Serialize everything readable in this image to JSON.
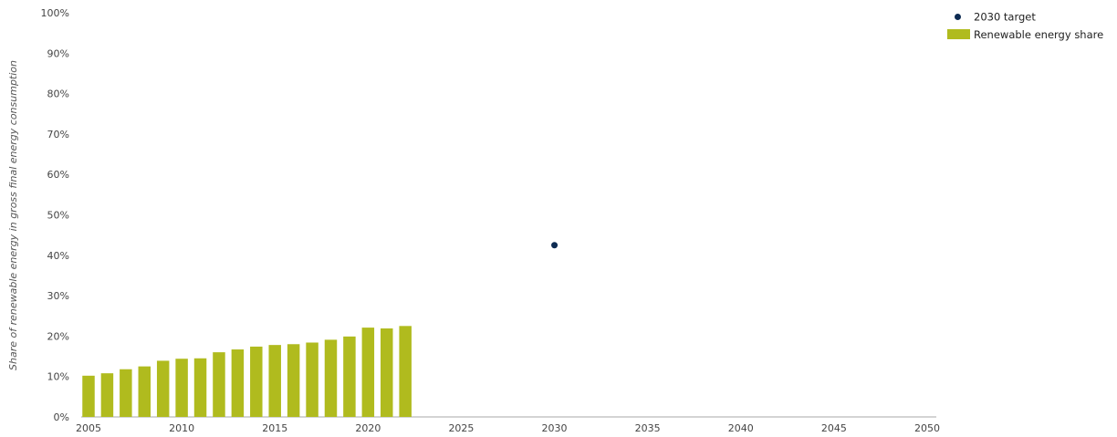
{
  "chart_data": {
    "type": "bar",
    "ylabel": "Share of renewable energy in gross final energy consumption",
    "xlim": [
      2005,
      2050
    ],
    "ylim": [
      0,
      100
    ],
    "x_ticks": [
      2005,
      2010,
      2015,
      2020,
      2025,
      2030,
      2035,
      2040,
      2045,
      2050
    ],
    "x_tick_labels": [
      "2005",
      "2010",
      "2015",
      "2020",
      "2025",
      "2030",
      "2035",
      "2040",
      "2045",
      "2050"
    ],
    "y_ticks": [
      0,
      10,
      20,
      30,
      40,
      50,
      60,
      70,
      80,
      90,
      100
    ],
    "y_tick_labels": [
      "0%",
      "10%",
      "20%",
      "30%",
      "40%",
      "50%",
      "60%",
      "70%",
      "80%",
      "90%",
      "100%"
    ],
    "grid": false,
    "legend_position": "top-right",
    "series": [
      {
        "name": "Renewable energy share",
        "kind": "bar",
        "color": "#b0bb1e",
        "x": [
          2005,
          2006,
          2007,
          2008,
          2009,
          2010,
          2011,
          2012,
          2013,
          2014,
          2015,
          2016,
          2017,
          2018,
          2019,
          2020,
          2021,
          2022
        ],
        "values": [
          10.2,
          10.8,
          11.8,
          12.5,
          13.9,
          14.4,
          14.5,
          16.0,
          16.7,
          17.4,
          17.8,
          18.0,
          18.4,
          19.1,
          19.9,
          22.1,
          21.9,
          22.5
        ]
      },
      {
        "name": "2030 target",
        "kind": "point",
        "color": "#0d2b52",
        "x": [
          2030
        ],
        "values": [
          42.5
        ]
      }
    ]
  }
}
